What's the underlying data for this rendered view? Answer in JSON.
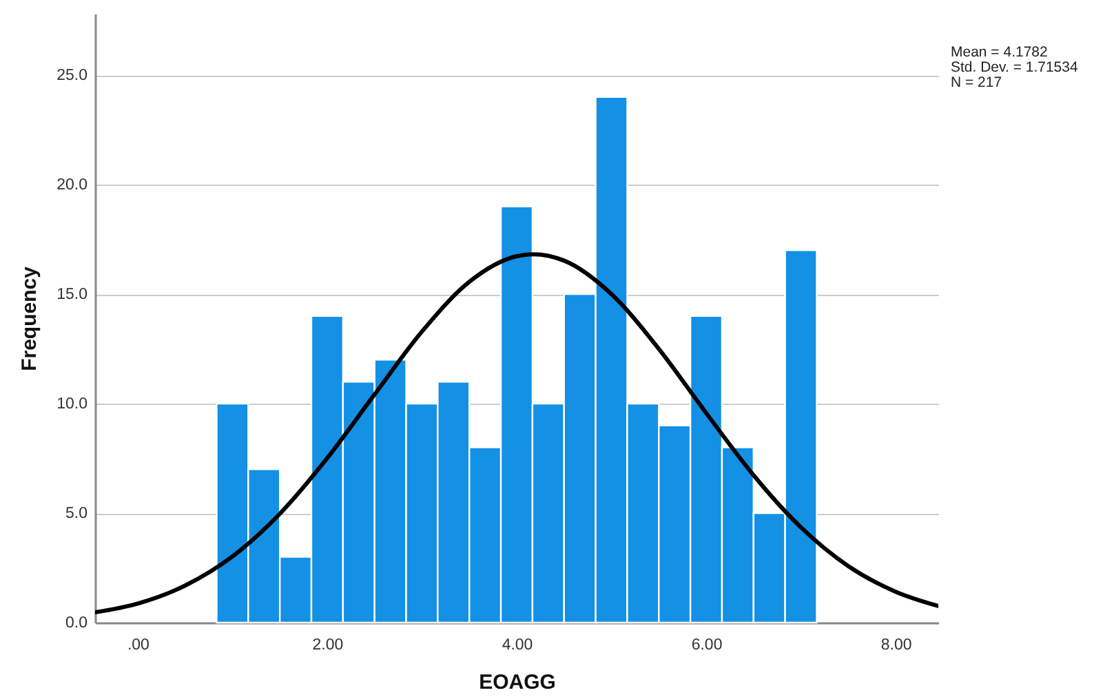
{
  "chart_data": {
    "type": "histogram",
    "xlabel": "EOAGG",
    "ylabel": "Frequency",
    "bins": [
      0.8333,
      1.1667,
      1.5,
      1.8333,
      2.1667,
      2.5,
      2.8333,
      3.1667,
      3.5,
      3.8333,
      4.1667,
      4.5,
      4.8333,
      5.1667,
      5.5,
      5.8333,
      6.1667,
      6.5,
      6.8333,
      7.1667
    ],
    "values": [
      10,
      7,
      3,
      14,
      11,
      12,
      10,
      11,
      8,
      19,
      10,
      15,
      24,
      10,
      9,
      14,
      8,
      5,
      17
    ],
    "color": "#1490e5",
    "series": [
      {
        "type": "line",
        "color": "#000000",
        "x": [
          -0.45,
          0,
          0.5,
          1,
          1.5,
          2,
          2.5,
          3,
          3.5,
          4,
          4.18,
          4.5,
          5,
          5.5,
          6,
          6.5,
          7,
          7.5,
          8,
          8.45
        ],
        "values": [
          0.47,
          0.87,
          1.69,
          3.02,
          4.97,
          7.51,
          10.42,
          13.29,
          15.56,
          16.73,
          16.82,
          16.53,
          15.0,
          12.5,
          9.57,
          6.73,
          4.35,
          2.58,
          1.41,
          0.76
        ]
      }
    ],
    "xlim": [
      -0.45,
      8.45
    ],
    "xticks": [
      {
        "value": 0,
        "label": ".00"
      },
      {
        "value": 2,
        "label": "2.00"
      },
      {
        "value": 4,
        "label": "4.00"
      },
      {
        "value": 6,
        "label": "6.00"
      },
      {
        "value": 8,
        "label": "8.00"
      }
    ],
    "ylim": [
      0,
      27.8
    ],
    "yticks": [
      {
        "value": 0,
        "label": "0.0"
      },
      {
        "value": 5,
        "label": "5.0"
      },
      {
        "value": 10,
        "label": "10.0"
      },
      {
        "value": 15,
        "label": "15.0"
      },
      {
        "value": 20,
        "label": "20.0"
      },
      {
        "value": 25,
        "label": "25.0"
      }
    ],
    "grid": "y",
    "annotations": [
      "Mean = 4.1782",
      "Std. Dev. = 1.71534",
      "N = 217"
    ]
  }
}
